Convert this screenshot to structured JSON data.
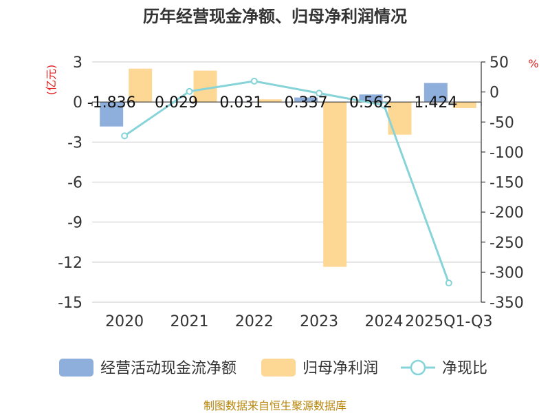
{
  "chart_data": {
    "type": "bar+line",
    "title": "历年经营现金净额、归母净利润情况",
    "categories": [
      "2020",
      "2021",
      "2022",
      "2023",
      "2024",
      "2025Q1-Q3"
    ],
    "series": [
      {
        "name": "经营活动现金流净额",
        "kind": "bar",
        "axis": "left",
        "color": "#8eaedb",
        "values": [
          -1.836,
          0.029,
          0.031,
          0.337,
          0.562,
          1.424
        ]
      },
      {
        "name": "归母净利润",
        "kind": "bar",
        "axis": "left",
        "color": "#fdd794",
        "values": [
          2.5,
          2.35,
          0.2,
          -12.35,
          -2.45,
          -0.45
        ]
      },
      {
        "name": "净现比",
        "kind": "line",
        "axis": "right",
        "color": "#86d3d8",
        "values": [
          -73,
          1,
          18,
          -2,
          -22,
          -318
        ]
      }
    ],
    "data_labels": [
      "-1.836",
      "0.029",
      "0.031",
      "0.337",
      "0.562",
      "1.424"
    ],
    "y_left": {
      "label": "(亿元)",
      "lim": [
        -15,
        3
      ],
      "ticks": [
        3,
        0,
        -3,
        -6,
        -9,
        -12,
        -15
      ]
    },
    "y_right": {
      "label": "%",
      "lim": [
        -350,
        50
      ],
      "ticks": [
        50,
        0,
        -50,
        -100,
        -150,
        -200,
        -250,
        -300,
        -350
      ]
    },
    "legend": [
      {
        "name": "经营活动现金流净额",
        "type": "bar",
        "color": "#8eaedb"
      },
      {
        "name": "归母净利润",
        "type": "bar",
        "color": "#fdd794"
      },
      {
        "name": "净现比",
        "type": "line",
        "color": "#86d3d8"
      }
    ],
    "legend_position": "bottom",
    "source": "制图数据来自恒生聚源数据库"
  }
}
